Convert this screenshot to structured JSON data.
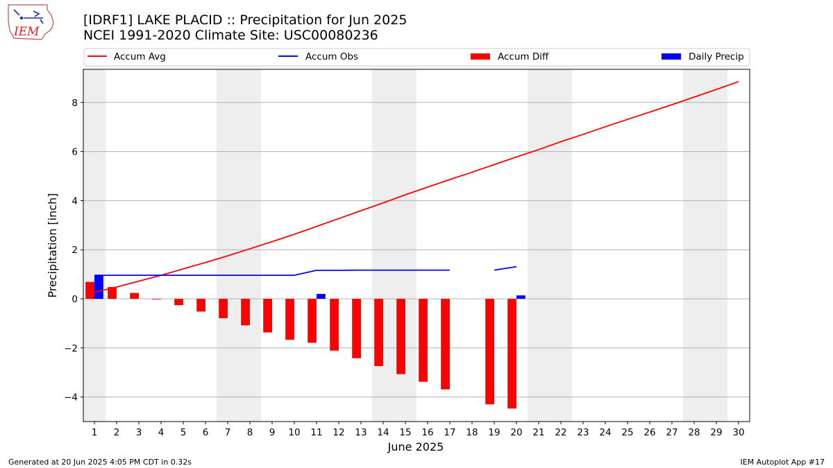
{
  "header": {
    "title_line1": "[IDRF1] LAKE PLACID :: Precipitation for Jun 2025",
    "title_line2": "NCEI 1991-2020 Climate Site: USC00080236",
    "logo_text": "IEM"
  },
  "footer": {
    "left": "Generated at 20 Jun 2025 4:05 PM CDT in 0.32s",
    "right": "IEM Autoplot App #17"
  },
  "colors": {
    "accum_avg": "#ff0000",
    "accum_obs": "#0000ff",
    "accum_diff": "#ff0000",
    "daily_precip": "#0000ff",
    "weekend_band": "#eeeeee",
    "grid": "#b0b0b0"
  },
  "chart_data": {
    "type": "bar",
    "xlabel": "June 2025",
    "ylabel": "Precipitation [inch]",
    "ylim": [
      -5.0,
      9.35
    ],
    "yticks": [
      -4,
      -2,
      0,
      2,
      4,
      6,
      8
    ],
    "days": [
      1,
      2,
      3,
      4,
      5,
      6,
      7,
      8,
      9,
      10,
      11,
      12,
      13,
      14,
      15,
      16,
      17,
      18,
      19,
      20,
      21,
      22,
      23,
      24,
      25,
      26,
      27,
      28,
      29,
      30
    ],
    "weekend_bands": [
      [
        1,
        1
      ],
      [
        7,
        8
      ],
      [
        14,
        15
      ],
      [
        21,
        22
      ],
      [
        28,
        29
      ]
    ],
    "grid": "horizontal",
    "legend_position": "top",
    "legend": [
      "Accum Avg",
      "Accum Obs",
      "Accum Diff",
      "Daily Precip"
    ],
    "series": [
      {
        "name": "Accum Avg",
        "type": "line",
        "x": [
          1,
          2,
          3,
          4,
          5,
          6,
          7,
          8,
          9,
          10,
          11,
          12,
          13,
          14,
          15,
          16,
          17,
          18,
          19,
          20,
          21,
          22,
          23,
          24,
          25,
          26,
          27,
          28,
          29,
          30
        ],
        "values": [
          0.27,
          0.48,
          0.72,
          0.96,
          1.22,
          1.48,
          1.75,
          2.04,
          2.33,
          2.63,
          2.95,
          3.27,
          3.59,
          3.91,
          4.24,
          4.55,
          4.86,
          5.16,
          5.47,
          5.78,
          6.08,
          6.4,
          6.7,
          7.01,
          7.31,
          7.61,
          7.91,
          8.22,
          8.53,
          8.85
        ]
      },
      {
        "name": "Accum Obs",
        "type": "line",
        "x": [
          1,
          2,
          3,
          4,
          5,
          6,
          7,
          8,
          9,
          10,
          11,
          12,
          13,
          14,
          15,
          16,
          17,
          18,
          19,
          20
        ],
        "values": [
          0.96,
          0.96,
          0.96,
          0.96,
          0.96,
          0.96,
          0.96,
          0.96,
          0.96,
          0.96,
          1.16,
          1.16,
          1.17,
          1.17,
          1.17,
          1.17,
          1.17,
          null,
          1.17,
          1.31
        ]
      },
      {
        "name": "Accum Diff",
        "type": "bar",
        "x": [
          1,
          2,
          3,
          4,
          5,
          6,
          7,
          8,
          9,
          10,
          11,
          12,
          13,
          14,
          15,
          16,
          17,
          18,
          19,
          20
        ],
        "values": [
          0.69,
          0.48,
          0.24,
          -0.01,
          -0.26,
          -0.52,
          -0.79,
          -1.08,
          -1.37,
          -1.67,
          -1.79,
          -2.11,
          -2.42,
          -2.74,
          -3.07,
          -3.38,
          -3.69,
          null,
          -4.3,
          -4.47
        ]
      },
      {
        "name": "Daily Precip",
        "type": "bar",
        "x": [
          1,
          11,
          20
        ],
        "values": [
          0.96,
          0.2,
          0.14
        ]
      }
    ]
  }
}
